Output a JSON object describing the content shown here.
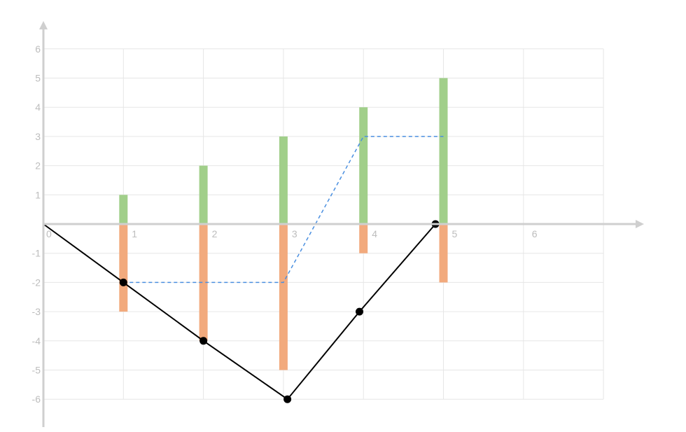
{
  "chart_data": {
    "type": "bar",
    "title": "",
    "xlabel": "",
    "ylabel": "",
    "xlim": [
      0,
      7
    ],
    "ylim": [
      -6,
      6
    ],
    "grid": true,
    "x_ticks": [
      "0",
      "1",
      "2",
      "3",
      "4",
      "5",
      "6"
    ],
    "y_ticks": [
      "6",
      "5",
      "4",
      "3",
      "2",
      "1",
      "-1",
      "-2",
      "-3",
      "-4",
      "-5",
      "-6"
    ],
    "colors": {
      "positive_bars": "#a1cf8a",
      "negative_bars": "#f2aa7d",
      "dashed_line": "#4a8fe0",
      "solid_line": "#000000",
      "grid": "#e6e6e6",
      "axis": "#cfcfcf"
    },
    "series": [
      {
        "kind": "bar",
        "x": [
          1,
          2,
          3,
          4,
          5
        ],
        "values": [
          1,
          2,
          3,
          4,
          5
        ]
      },
      {
        "kind": "bar",
        "x": [
          1,
          2,
          3,
          4,
          5
        ],
        "values": [
          -3,
          -4,
          -5,
          -1,
          -2
        ]
      },
      {
        "kind": "dashed-line",
        "x": [
          1,
          2,
          3,
          4,
          5
        ],
        "values": [
          -2,
          -2,
          -2,
          3,
          3
        ]
      },
      {
        "kind": "line-markers",
        "x": [
          0,
          1,
          2,
          3.05,
          3.95,
          4.9
        ],
        "values": [
          0,
          -2,
          -4,
          -6,
          -3,
          0
        ]
      }
    ]
  }
}
